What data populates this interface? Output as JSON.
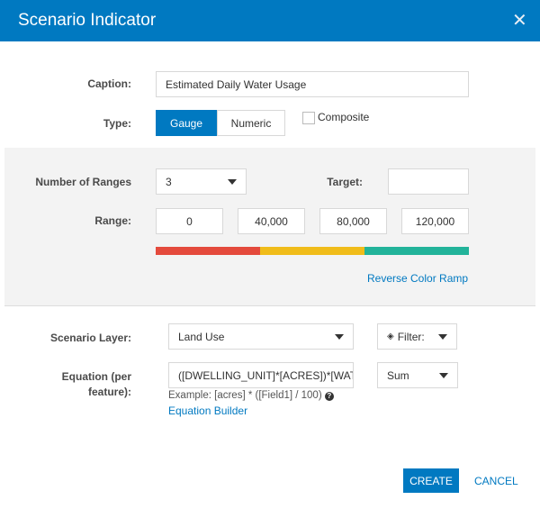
{
  "dialog": {
    "title": "Scenario Indicator",
    "close_icon": "close-icon"
  },
  "caption": {
    "label": "Caption:",
    "value": "Estimated Daily Water Usage"
  },
  "type": {
    "label": "Type:",
    "options": [
      "Gauge",
      "Numeric"
    ],
    "selected": "Gauge",
    "composite_label": "Composite",
    "composite_checked": false
  },
  "ranges": {
    "label": "Number of Ranges",
    "value": "3",
    "target_label": "Target:",
    "target_value": "",
    "range_label": "Range:",
    "values": [
      "0",
      "40,000",
      "80,000",
      "120,000"
    ],
    "colors": [
      "#e44a3c",
      "#f0bc1a",
      "#22b39a"
    ],
    "reverse_label": "Reverse Color Ramp"
  },
  "layer": {
    "label": "Scenario Layer:",
    "value": "Land Use",
    "filter_label": "Filter:",
    "filter_icon": "layers-icon"
  },
  "equation": {
    "label": "Equation (per feature):",
    "value": "([DWELLING_UNIT]*[ACRES])*[WATE",
    "aggregate": "Sum",
    "example": "Example: [acres] * ([Field1] / 100)",
    "help_icon": "question-icon",
    "builder_label": "Equation Builder"
  },
  "footer": {
    "create_label": "CREATE",
    "cancel_label": "CANCEL"
  },
  "colors": {
    "accent": "#0079c1"
  }
}
